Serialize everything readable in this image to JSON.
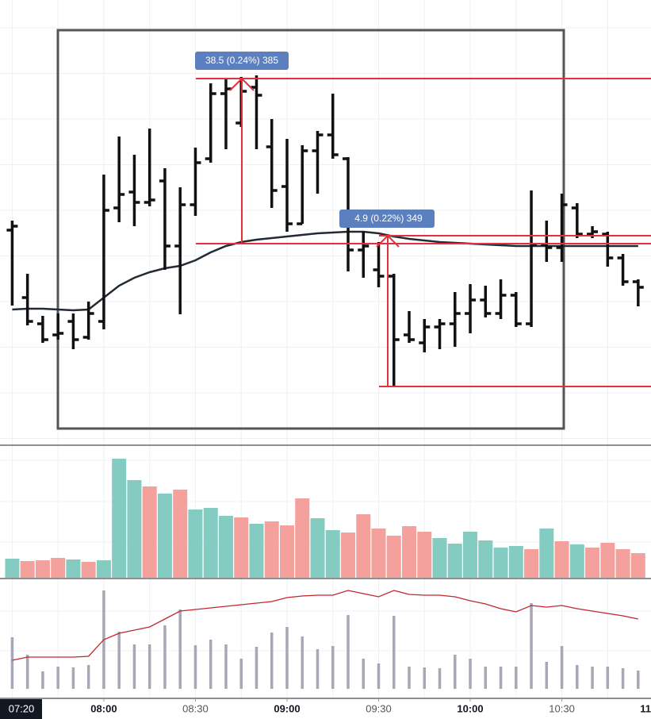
{
  "chart_data": [
    {
      "type": "ohlc",
      "x": [
        450,
        455,
        460,
        465,
        470,
        475,
        480,
        485,
        490,
        495,
        500,
        505,
        510,
        515,
        520,
        525,
        530,
        535,
        540,
        545,
        550,
        555,
        560,
        565,
        570,
        575,
        580,
        585,
        590,
        595,
        600,
        605,
        610,
        615,
        620,
        625,
        630,
        635,
        640,
        645,
        650,
        655
      ],
      "open": [
        270,
        185,
        152,
        138,
        155,
        135,
        155,
        298,
        318,
        305,
        332,
        250,
        302,
        360,
        442,
        405,
        450,
        375,
        325,
        278,
        370,
        390,
        360,
        245,
        220,
        212,
        138,
        128,
        148,
        152,
        165,
        182,
        165,
        188,
        152,
        252,
        248,
        298,
        265,
        265,
        235,
        205
      ],
      "high": [
        282,
        215,
        162,
        165,
        165,
        180,
        340,
        388,
        365,
        398,
        348,
        324,
        374,
        455,
        462,
        463,
        465,
        410,
        385,
        377,
        395,
        442,
        362,
        268,
        255,
        215,
        168,
        158,
        158,
        192,
        202,
        200,
        208,
        192,
        320,
        282,
        316,
        304,
        275,
        268,
        240,
        208
      ],
      "low": [
        175,
        150,
        128,
        132,
        120,
        132,
        145,
        280,
        275,
        300,
        220,
        164,
        288,
        355,
        372,
        400,
        372,
        298,
        268,
        278,
        316,
        360,
        218,
        210,
        198,
        73,
        128,
        116,
        120,
        123,
        140,
        160,
        158,
        148,
        148,
        230,
        230,
        260,
        260,
        224,
        200,
        174
      ],
      "close": [
        275,
        155,
        132,
        140,
        132,
        165,
        295,
        315,
        305,
        308,
        250,
        302,
        355,
        442,
        448,
        445,
        440,
        320,
        278,
        370,
        390,
        365,
        245,
        250,
        212,
        132,
        132,
        148,
        152,
        165,
        182,
        165,
        188,
        152,
        252,
        248,
        302,
        265,
        268,
        235,
        205,
        198
      ],
      "color": "#111111",
      "ma": {
        "color": "#222a36",
        "values": [
          170,
          171,
          171,
          170,
          169,
          170,
          185,
          200,
          210,
          217,
          222,
          225,
          232,
          242,
          250,
          255,
          258,
          260,
          262,
          264,
          266,
          267,
          268,
          268,
          266,
          262,
          259,
          257,
          255,
          254,
          253,
          252,
          251,
          250,
          250,
          250,
          250,
          250,
          250,
          250,
          250,
          250
        ]
      },
      "measures": [
        {
          "label": "38.5 (0.24%) 385"
        },
        {
          "label": "4.9 (0.22%) 349"
        }
      ],
      "xlim": [
        446,
        659.2
      ],
      "ylim": [
        0,
        560
      ]
    },
    {
      "type": "bar",
      "x": [
        450,
        455,
        460,
        465,
        470,
        475,
        480,
        485,
        490,
        495,
        500,
        505,
        510,
        515,
        520,
        525,
        530,
        535,
        540,
        545,
        550,
        555,
        560,
        565,
        570,
        575,
        580,
        585,
        590,
        595,
        600,
        605,
        610,
        615,
        620,
        625,
        630,
        635,
        640,
        645,
        650,
        655
      ],
      "values": [
        24,
        21,
        22,
        25,
        23,
        20,
        22,
        150,
        123,
        115,
        106,
        111,
        86,
        88,
        78,
        76,
        68,
        71,
        66,
        100,
        75,
        60,
        57,
        80,
        62,
        53,
        65,
        58,
        50,
        43,
        58,
        47,
        38,
        40,
        36,
        62,
        46,
        42,
        38,
        44,
        36,
        31
      ],
      "colors": [
        "#84cbc1",
        "#f4a19d",
        "#f4a19d",
        "#f4a19d",
        "#84cbc1",
        "#f4a19d",
        "#84cbc1",
        "#84cbc1",
        "#84cbc1",
        "#f4a19d",
        "#84cbc1",
        "#f4a19d",
        "#84cbc1",
        "#84cbc1",
        "#84cbc1",
        "#f4a19d",
        "#84cbc1",
        "#f4a19d",
        "#f4a19d",
        "#f4a19d",
        "#84cbc1",
        "#84cbc1",
        "#f4a19d",
        "#f4a19d",
        "#f4a19d",
        "#f4a19d",
        "#f4a19d",
        "#f4a19d",
        "#84cbc1",
        "#84cbc1",
        "#84cbc1",
        "#84cbc1",
        "#84cbc1",
        "#84cbc1",
        "#f4a19d",
        "#84cbc1",
        "#f4a19d",
        "#84cbc1",
        "#f4a19d",
        "#f4a19d",
        "#f4a19d",
        "#f4a19d"
      ],
      "xlim": [
        446,
        659.2
      ],
      "ylim": [
        0,
        166
      ]
    },
    {
      "type": "bar",
      "x": [
        450,
        455,
        460,
        465,
        470,
        475,
        480,
        485,
        490,
        495,
        500,
        505,
        510,
        515,
        520,
        525,
        530,
        535,
        540,
        545,
        550,
        555,
        560,
        565,
        570,
        575,
        580,
        585,
        590,
        595,
        600,
        605,
        610,
        615,
        620,
        625,
        630,
        635,
        640,
        645,
        650,
        655
      ],
      "values": [
        65,
        43,
        22,
        28,
        27,
        30,
        124,
        72,
        56,
        56,
        80,
        100,
        55,
        62,
        56,
        38,
        53,
        71,
        78,
        66,
        50,
        54,
        93,
        38,
        32,
        92,
        28,
        27,
        26,
        43,
        38,
        28,
        28,
        28,
        108,
        34,
        54,
        30,
        28,
        28,
        26,
        23
      ],
      "color": "#a7a7b5",
      "line": {
        "color": "#c1272d",
        "values": [
          36,
          40,
          40,
          40,
          40,
          41,
          62,
          70,
          74,
          78,
          88,
          98,
          100,
          102,
          104,
          106,
          108,
          110,
          115,
          117,
          118,
          118,
          124,
          120,
          116,
          124,
          119,
          118,
          118,
          116,
          111,
          107,
          101,
          97,
          105,
          103,
          105,
          101,
          98,
          95,
          92,
          88
        ]
      },
      "xlim": [
        446,
        659.2
      ],
      "ylim": [
        0,
        138
      ],
      "xticks": [
        {
          "value": 480,
          "label": "08:00"
        },
        {
          "value": 510,
          "label": "08:30"
        },
        {
          "value": 540,
          "label": "09:00"
        },
        {
          "value": 570,
          "label": "09:30"
        },
        {
          "value": 600,
          "label": "10:00"
        },
        {
          "value": 630,
          "label": "10:30"
        },
        {
          "value": 660,
          "label": "11"
        }
      ],
      "cursor_label": "07:20"
    }
  ]
}
